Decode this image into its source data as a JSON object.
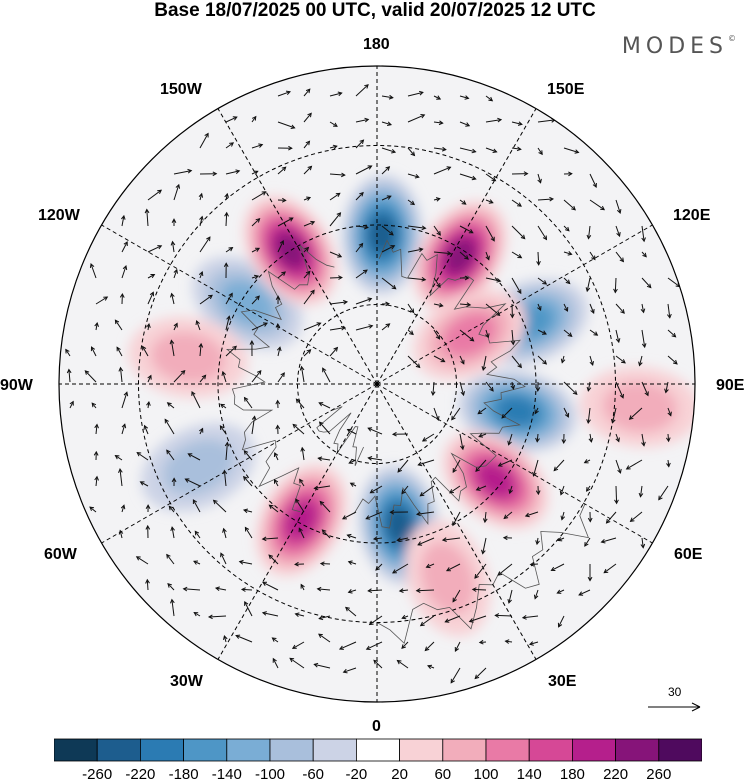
{
  "title": "Base 18/07/2025 00 UTC, valid 20/07/2025 12 UTC",
  "brand": "MODES",
  "brand_mark": "©",
  "labels": {
    "lon_180": "180",
    "lon_150E": "150E",
    "lon_120E": "120E",
    "lon_90E": "90E",
    "lon_60E": "60E",
    "lon_30E": "30E",
    "lon_0": "0",
    "lon_30W": "30W",
    "lon_60W": "60W",
    "lon_90W": "90W",
    "lon_120W": "120W",
    "lon_150W": "150W"
  },
  "reference_vector": "30",
  "colorbar": {
    "ticks": [
      "-260",
      "-220",
      "-180",
      "-140",
      "-100",
      "-60",
      "-20",
      "20",
      "60",
      "100",
      "140",
      "180",
      "220",
      "260"
    ],
    "colors": [
      "#0e3956",
      "#1d5d8e",
      "#2b7bb3",
      "#4e96c6",
      "#7aadd5",
      "#a9bfdc",
      "#ccd3e6",
      "#ffffff",
      "#f8d2d6",
      "#f2adbb",
      "#e97aa6",
      "#d64896",
      "#b51f8c",
      "#861479",
      "#4f0a5e"
    ]
  },
  "anomalies": [
    {
      "lon": 178,
      "r": 0.47,
      "value": -220
    },
    {
      "lon": 147,
      "r": 0.48,
      "value": 220
    },
    {
      "lon": 112,
      "r": 0.52,
      "value": -140
    },
    {
      "lon": 118,
      "r": 0.33,
      "value": 100
    },
    {
      "lon": 79,
      "r": 0.45,
      "value": -180
    },
    {
      "lon": 51,
      "r": 0.48,
      "value": 180
    },
    {
      "lon": 9,
      "r": 0.45,
      "value": -220
    },
    {
      "lon": 20,
      "r": 0.65,
      "value": 60
    },
    {
      "lon": 331,
      "r": 0.49,
      "value": 180
    },
    {
      "lon": 238,
      "r": 0.48,
      "value": -100
    },
    {
      "lon": 213,
      "r": 0.5,
      "value": 220
    },
    {
      "lon": 85,
      "r": 0.83,
      "value": 60
    },
    {
      "lon": 295,
      "r": 0.62,
      "value": -60
    },
    {
      "lon": 262,
      "r": 0.6,
      "value": 60
    }
  ]
}
